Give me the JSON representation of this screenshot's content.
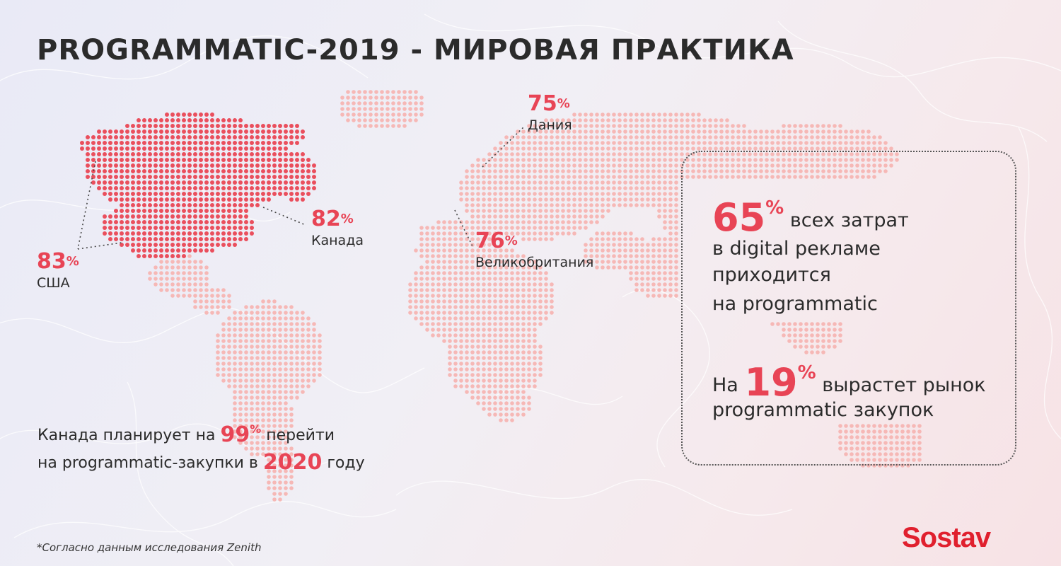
{
  "title": "PROGRAMMATIC-2019 - МИРОВАЯ ПРАКТИКА",
  "colors": {
    "accent": "#e84455",
    "map_light": "#f6b8b6",
    "map_dark": "#ea4f5d",
    "logo": "#e0202e"
  },
  "stats": [
    {
      "id": "usa",
      "value": "83",
      "sign": "%",
      "country": "США"
    },
    {
      "id": "canada",
      "value": "82",
      "sign": "%",
      "country": "Канада"
    },
    {
      "id": "denmark",
      "value": "75",
      "sign": "%",
      "country": "Дания"
    },
    {
      "id": "uk",
      "value": "76",
      "sign": "%",
      "country": "Великобритания"
    }
  ],
  "info_box": {
    "stat1_value": "65",
    "stat1_sign": "%",
    "stat1_line1": "всех затрат",
    "stat1_line2": "в digital рекламе",
    "stat1_line3": "приходится",
    "stat1_line4": "на programmatic",
    "stat2_prefix": "На",
    "stat2_value": "19",
    "stat2_sign": "%",
    "stat2_line1": "вырастет рынок",
    "stat2_line2": "programmatic закупок"
  },
  "canada_note": {
    "part1": "Канада планирует на",
    "value": "99",
    "sign": "%",
    "part2": "перейти",
    "part3": "на programmatic-закупки в",
    "year": "2020",
    "part4": "году"
  },
  "footnote": "*Согласно данным исследования Zenith",
  "logo": "Sostav"
}
